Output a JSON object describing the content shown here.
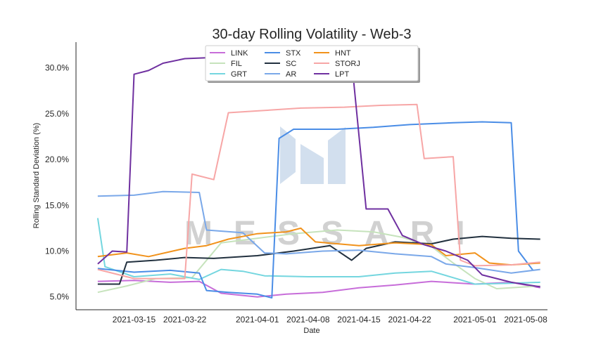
{
  "chart_data": {
    "type": "line",
    "title": "30-day Rolling Volatility - Web-3",
    "xlabel": "Date",
    "ylabel": "Rolling Standard Deviation (%)",
    "x_ticks": [
      "2021-03-15",
      "2021-03-22",
      "2021-04-01",
      "2021-04-08",
      "2021-04-15",
      "2021-04-22",
      "2021-05-01",
      "2021-05-08"
    ],
    "y_ticks": [
      "5.0%",
      "10.0%",
      "15.0%",
      "20.0%",
      "25.0%",
      "30.0%"
    ],
    "y_tick_values": [
      5,
      10,
      15,
      20,
      25,
      30
    ],
    "xlim": [
      "2021-03-07",
      "2021-05-11"
    ],
    "ylim": [
      3.6,
      32.8
    ],
    "grid": false,
    "legend_position": "top-center",
    "watermark": "MESSARI",
    "series": [
      {
        "name": "LINK",
        "color": "#c76dd9",
        "x": [
          "2021-03-10",
          "2021-03-15",
          "2021-03-20",
          "2021-03-24",
          "2021-03-27",
          "2021-04-01",
          "2021-04-05",
          "2021-04-10",
          "2021-04-15",
          "2021-04-20",
          "2021-04-25",
          "2021-05-01",
          "2021-05-06",
          "2021-05-10"
        ],
        "values": [
          6.7,
          6.8,
          6.6,
          6.7,
          5.4,
          5.0,
          5.3,
          5.5,
          6.0,
          6.3,
          6.7,
          6.4,
          6.6,
          6.0
        ]
      },
      {
        "name": "FIL",
        "color": "#c6e3bc",
        "x": [
          "2021-03-10",
          "2021-03-14",
          "2021-03-18",
          "2021-03-23",
          "2021-03-27",
          "2021-04-01",
          "2021-04-06",
          "2021-04-12",
          "2021-04-17",
          "2021-04-21",
          "2021-04-25",
          "2021-04-28",
          "2021-05-01",
          "2021-05-04",
          "2021-05-10"
        ],
        "values": [
          5.5,
          6.2,
          7.0,
          7.1,
          10.9,
          11.4,
          11.9,
          12.3,
          12.1,
          11.5,
          10.5,
          8.7,
          7.0,
          5.9,
          6.2
        ]
      },
      {
        "name": "GRT",
        "color": "#74d6df",
        "x": [
          "2021-03-10",
          "2021-03-11",
          "2021-03-15",
          "2021-03-20",
          "2021-03-24",
          "2021-03-27",
          "2021-03-30",
          "2021-04-02",
          "2021-04-08",
          "2021-04-15",
          "2021-04-20",
          "2021-04-25",
          "2021-04-28",
          "2021-05-01",
          "2021-05-06",
          "2021-05-10"
        ],
        "values": [
          13.6,
          8.3,
          7.2,
          7.5,
          6.9,
          8.0,
          7.8,
          7.3,
          7.2,
          7.2,
          7.6,
          7.8,
          7.1,
          6.4,
          6.5,
          6.6
        ]
      },
      {
        "name": "STX",
        "color": "#4a8de6",
        "x": [
          "2021-03-10",
          "2021-03-15",
          "2021-03-20",
          "2021-03-24",
          "2021-03-25",
          "2021-03-28",
          "2021-04-01",
          "2021-04-03",
          "2021-04-04",
          "2021-04-06",
          "2021-04-12",
          "2021-04-17",
          "2021-04-22",
          "2021-04-28",
          "2021-05-02",
          "2021-05-06",
          "2021-05-07",
          "2021-05-09"
        ],
        "values": [
          8.1,
          7.7,
          7.9,
          7.6,
          5.7,
          5.5,
          5.3,
          4.9,
          22.3,
          23.3,
          23.3,
          23.5,
          23.8,
          24.0,
          24.1,
          24.0,
          10.0,
          7.9
        ]
      },
      {
        "name": "SC",
        "color": "#22313f",
        "x": [
          "2021-03-10",
          "2021-03-13",
          "2021-03-14",
          "2021-03-18",
          "2021-03-22",
          "2021-03-26",
          "2021-04-01",
          "2021-04-06",
          "2021-04-11",
          "2021-04-14",
          "2021-04-16",
          "2021-04-20",
          "2021-04-25",
          "2021-04-28",
          "2021-05-02",
          "2021-05-06",
          "2021-05-10"
        ],
        "values": [
          6.4,
          6.4,
          8.8,
          9.0,
          9.3,
          9.2,
          9.5,
          10.0,
          10.6,
          9.0,
          10.3,
          11.0,
          10.8,
          11.3,
          11.6,
          11.4,
          11.3
        ]
      },
      {
        "name": "AR",
        "color": "#7aa8e9",
        "x": [
          "2021-03-10",
          "2021-03-15",
          "2021-03-19",
          "2021-03-24",
          "2021-03-25",
          "2021-03-30",
          "2021-04-02",
          "2021-04-05",
          "2021-04-10",
          "2021-04-15",
          "2021-04-20",
          "2021-04-25",
          "2021-04-27",
          "2021-05-01",
          "2021-05-06",
          "2021-05-10"
        ],
        "values": [
          16.0,
          16.1,
          16.5,
          16.4,
          12.3,
          12.0,
          9.8,
          9.7,
          10.0,
          10.1,
          9.7,
          9.4,
          8.6,
          8.2,
          7.6,
          8.0
        ]
      },
      {
        "name": "HNT",
        "color": "#f1921b",
        "x": [
          "2021-03-10",
          "2021-03-14",
          "2021-03-17",
          "2021-03-22",
          "2021-03-25",
          "2021-03-28",
          "2021-04-01",
          "2021-04-05",
          "2021-04-07",
          "2021-04-09",
          "2021-04-15",
          "2021-04-20",
          "2021-04-25",
          "2021-04-27",
          "2021-05-01",
          "2021-05-03",
          "2021-05-06",
          "2021-05-10"
        ],
        "values": [
          9.4,
          9.8,
          9.4,
          10.3,
          10.6,
          11.3,
          11.9,
          12.1,
          12.5,
          11.0,
          10.6,
          10.9,
          10.7,
          9.5,
          9.8,
          8.7,
          8.5,
          8.7
        ]
      },
      {
        "name": "STORJ",
        "color": "#f7a6a6",
        "x": [
          "2021-03-10",
          "2021-03-15",
          "2021-03-22",
          "2021-03-23",
          "2021-03-26",
          "2021-03-28",
          "2021-04-01",
          "2021-04-07",
          "2021-04-13",
          "2021-04-18",
          "2021-04-23",
          "2021-04-24",
          "2021-04-28",
          "2021-04-29",
          "2021-05-01",
          "2021-05-06",
          "2021-05-10"
        ],
        "values": [
          8.0,
          7.0,
          7.0,
          18.4,
          17.8,
          25.1,
          25.3,
          25.6,
          25.7,
          25.9,
          26.0,
          20.1,
          20.3,
          9.0,
          8.4,
          8.5,
          8.8
        ]
      },
      {
        "name": "LPT",
        "color": "#6f30a0",
        "x": [
          "2021-03-10",
          "2021-03-12",
          "2021-03-14",
          "2021-03-15",
          "2021-03-17",
          "2021-03-19",
          "2021-03-22",
          "2021-03-25",
          "2021-03-27",
          "2021-04-14",
          "2021-04-16",
          "2021-04-19",
          "2021-04-21",
          "2021-04-24",
          "2021-04-27",
          "2021-04-30",
          "2021-05-02",
          "2021-05-06",
          "2021-05-10"
        ],
        "values": [
          8.6,
          10.0,
          9.9,
          29.3,
          29.7,
          30.5,
          31.0,
          31.1,
          30.8,
          30.8,
          14.6,
          14.6,
          11.7,
          10.7,
          10.0,
          9.0,
          7.4,
          6.6,
          6.1
        ]
      }
    ]
  }
}
